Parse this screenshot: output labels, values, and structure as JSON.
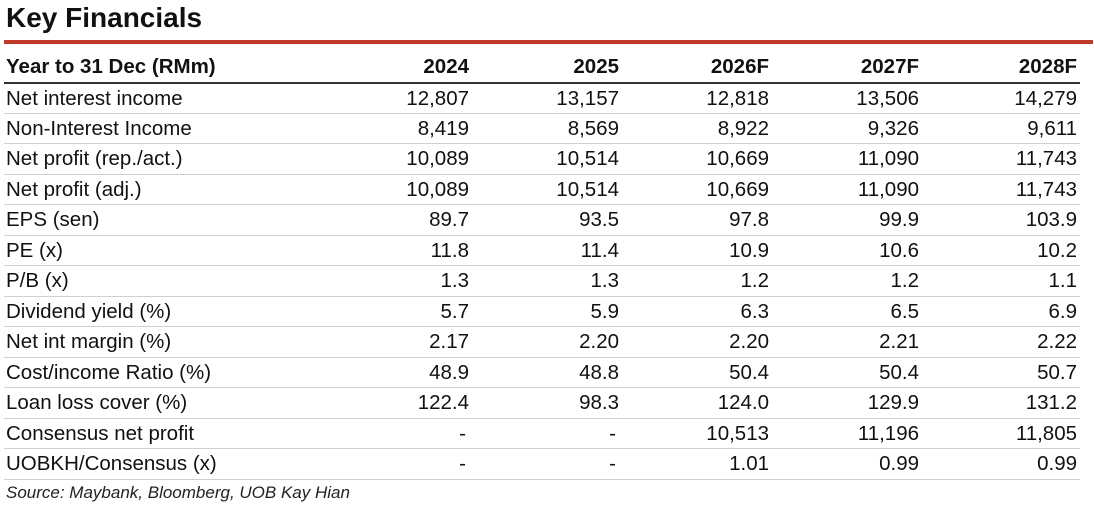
{
  "title": "Key Financials",
  "table": {
    "header": [
      "Year to 31 Dec (RMm)",
      "2024",
      "2025",
      "2026F",
      "2027F",
      "2028F"
    ],
    "rows": [
      {
        "label": "Net interest income",
        "values": [
          "12,807",
          "13,157",
          "12,818",
          "13,506",
          "14,279"
        ]
      },
      {
        "label": "Non-Interest Income",
        "values": [
          "8,419",
          "8,569",
          "8,922",
          "9,326",
          "9,611"
        ]
      },
      {
        "label": "Net profit (rep./act.)",
        "values": [
          "10,089",
          "10,514",
          "10,669",
          "11,090",
          "11,743"
        ]
      },
      {
        "label": "Net profit (adj.)",
        "values": [
          "10,089",
          "10,514",
          "10,669",
          "11,090",
          "11,743"
        ]
      },
      {
        "label": "EPS (sen)",
        "values": [
          "89.7",
          "93.5",
          "97.8",
          "99.9",
          "103.9"
        ]
      },
      {
        "label": "PE (x)",
        "values": [
          "11.8",
          "11.4",
          "10.9",
          "10.6",
          "10.2"
        ]
      },
      {
        "label": "P/B (x)",
        "values": [
          "1.3",
          "1.3",
          "1.2",
          "1.2",
          "1.1"
        ]
      },
      {
        "label": "Dividend yield (%)",
        "values": [
          "5.7",
          "5.9",
          "6.3",
          "6.5",
          "6.9"
        ]
      },
      {
        "label": "Net int margin (%)",
        "values": [
          "2.17",
          "2.20",
          "2.20",
          "2.21",
          "2.22"
        ]
      },
      {
        "label": "Cost/income Ratio (%)",
        "values": [
          "48.9",
          "48.8",
          "50.4",
          "50.4",
          "50.7"
        ]
      },
      {
        "label": "Loan loss cover (%)",
        "values": [
          "122.4",
          "98.3",
          "124.0",
          "129.9",
          "131.2"
        ]
      },
      {
        "label": "Consensus net profit",
        "values": [
          "-",
          "-",
          "10,513",
          "11,196",
          "11,805"
        ]
      },
      {
        "label": "UOBKH/Consensus (x)",
        "values": [
          "-",
          "-",
          "1.01",
          "0.99",
          "0.99"
        ]
      }
    ]
  },
  "source": "Source: Maybank, Bloomberg, UOB Kay Hian",
  "colors": {
    "title_rule": "#c0392b",
    "text": "#111111",
    "row_divider": "#d0d0d0"
  }
}
